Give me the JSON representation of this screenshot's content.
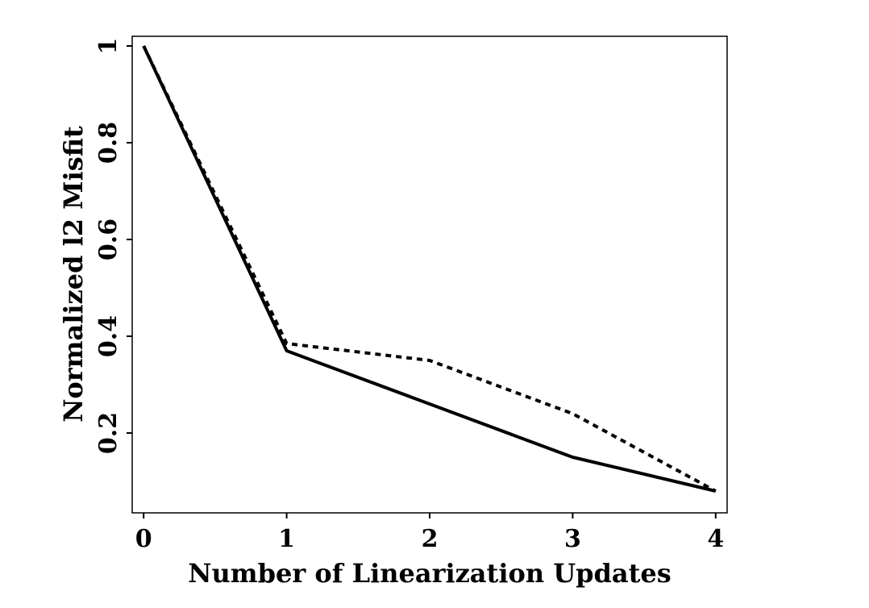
{
  "chart_data": {
    "type": "line",
    "title": "",
    "xlabel": "Number of Linearization Updates",
    "ylabel": "Normalized l2 Misfit",
    "x": [
      0,
      1,
      2,
      3,
      4
    ],
    "xlim": [
      -0.08,
      4.08
    ],
    "ylim": [
      0.035,
      1.02
    ],
    "x_ticks": [
      "0",
      "1",
      "2",
      "3",
      "4"
    ],
    "y_ticks": [
      {
        "value": 0.2,
        "label": "0.2"
      },
      {
        "value": 0.4,
        "label": "0.4"
      },
      {
        "value": 0.6,
        "label": "0.6"
      },
      {
        "value": 0.8,
        "label": "0.8"
      },
      {
        "value": 1.0,
        "label": "1"
      }
    ],
    "grid": false,
    "legend": "none",
    "series": [
      {
        "style": "solid",
        "color": "#000000",
        "values": [
          1.0,
          0.37,
          0.26,
          0.15,
          0.08
        ]
      },
      {
        "style": "dashed",
        "color": "#000000",
        "values": [
          1.0,
          0.385,
          0.35,
          0.24,
          0.08
        ]
      }
    ]
  }
}
